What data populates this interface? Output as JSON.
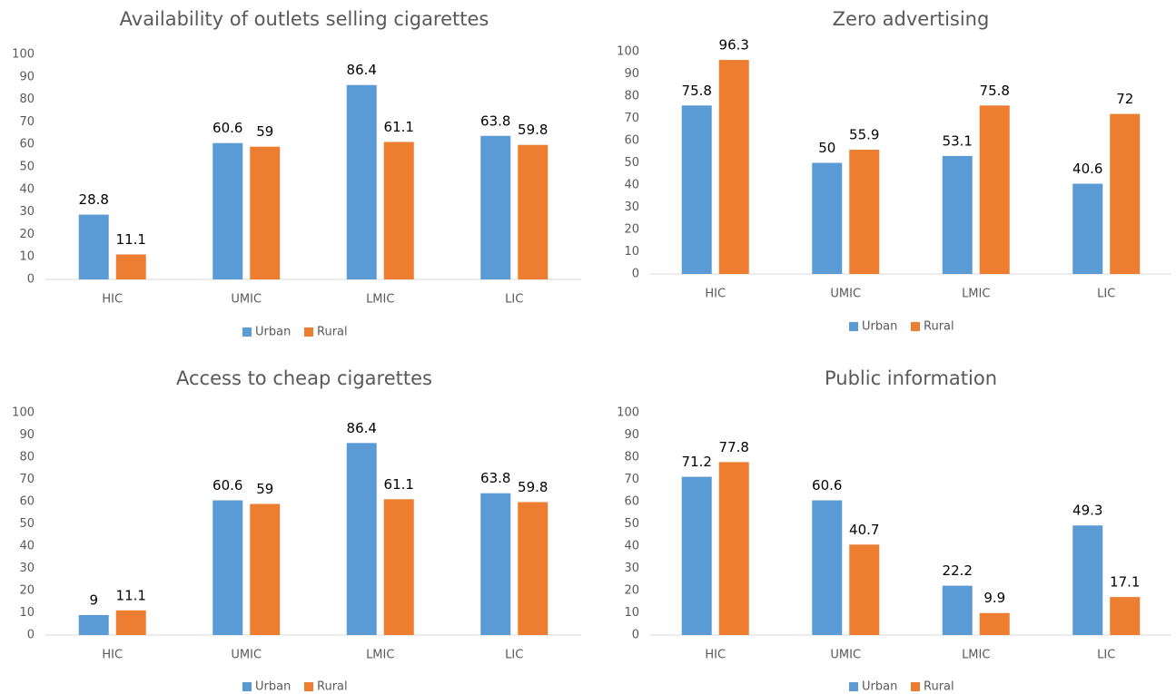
{
  "chart_data": [
    {
      "type": "bar",
      "title": "Availability of outlets selling cigarettes",
      "categories": [
        "HIC",
        "UMIC",
        "LMIC",
        "LIC"
      ],
      "series": [
        {
          "name": "Urban",
          "color": "#5b9bd5",
          "values": [
            28.8,
            60.6,
            86.4,
            63.8
          ]
        },
        {
          "name": "Rural",
          "color": "#ed7d31",
          "values": [
            11.1,
            59,
            61.1,
            59.8
          ]
        }
      ],
      "ylim": [
        0,
        100
      ],
      "yticks": [
        0,
        10,
        20,
        30,
        40,
        50,
        60,
        70,
        80,
        90,
        100
      ],
      "grid": false,
      "legend": "bottom"
    },
    {
      "type": "bar",
      "title": "Zero advertising",
      "categories": [
        "HIC",
        "UMIC",
        "LMIC",
        "LIC"
      ],
      "series": [
        {
          "name": "Urban",
          "color": "#5b9bd5",
          "values": [
            75.8,
            50,
            53.1,
            40.6
          ]
        },
        {
          "name": "Rural",
          "color": "#ed7d31",
          "values": [
            96.3,
            55.9,
            75.8,
            72
          ]
        }
      ],
      "ylim": [
        0,
        100
      ],
      "yticks": [
        0,
        10,
        20,
        30,
        40,
        50,
        60,
        70,
        80,
        90,
        100
      ],
      "grid": false,
      "legend": "bottom"
    },
    {
      "type": "bar",
      "title": "Access to cheap cigarettes",
      "categories": [
        "HIC",
        "UMIC",
        "LMIC",
        "LIC"
      ],
      "series": [
        {
          "name": "Urban",
          "color": "#5b9bd5",
          "values": [
            9,
            60.6,
            86.4,
            63.8
          ]
        },
        {
          "name": "Rural",
          "color": "#ed7d31",
          "values": [
            11.1,
            59,
            61.1,
            59.8
          ]
        }
      ],
      "ylim": [
        0,
        100
      ],
      "yticks": [
        0,
        10,
        20,
        30,
        40,
        50,
        60,
        70,
        80,
        90,
        100
      ],
      "grid": false,
      "legend": "bottom"
    },
    {
      "type": "bar",
      "title": "Public information",
      "categories": [
        "HIC",
        "UMIC",
        "LMIC",
        "LIC"
      ],
      "series": [
        {
          "name": "Urban",
          "color": "#5b9bd5",
          "values": [
            71.2,
            60.6,
            22.2,
            49.3
          ]
        },
        {
          "name": "Rural",
          "color": "#ed7d31",
          "values": [
            77.8,
            40.7,
            9.9,
            17.1
          ]
        }
      ],
      "ylim": [
        0,
        100
      ],
      "yticks": [
        0,
        10,
        20,
        30,
        40,
        50,
        60,
        70,
        80,
        90,
        100
      ],
      "grid": false,
      "legend": "bottom"
    }
  ]
}
